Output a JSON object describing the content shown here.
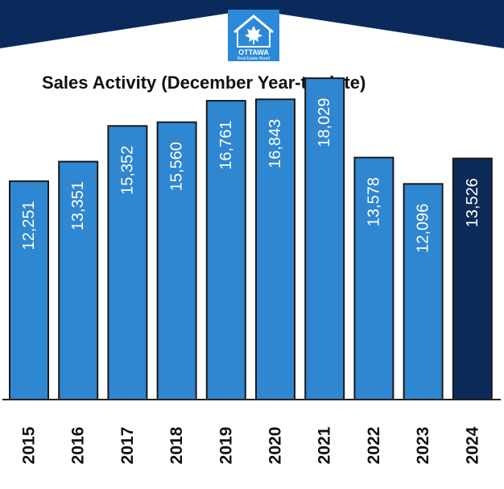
{
  "logo": {
    "name": "OTTAWA",
    "subtitle": "Real Estate Board"
  },
  "colors": {
    "banner": "#0b2a5c",
    "logo_bg": "#2b89d8",
    "bar": "#2f86d1",
    "bar_highlight": "#0c2b59",
    "bar_stroke": "#1a1a1a",
    "axis": "#222222"
  },
  "chart_data": {
    "type": "bar",
    "title": "Sales Activity (December Year-to-date)",
    "categories": [
      "2015",
      "2016",
      "2017",
      "2018",
      "2019",
      "2020",
      "2021",
      "2022",
      "2023",
      "2024"
    ],
    "values": [
      12251,
      13351,
      15352,
      15560,
      16761,
      16843,
      18029,
      13578,
      12096,
      13526
    ],
    "value_labels": [
      "12,251",
      "13,351",
      "15,352",
      "15,560",
      "16,761",
      "16,843",
      "18,029",
      "13,578",
      "12,096",
      "13,526"
    ],
    "highlight_index": 9,
    "ylim": [
      0,
      18800
    ],
    "xlabel": "",
    "ylabel": "",
    "grid": false,
    "legend": "none"
  }
}
